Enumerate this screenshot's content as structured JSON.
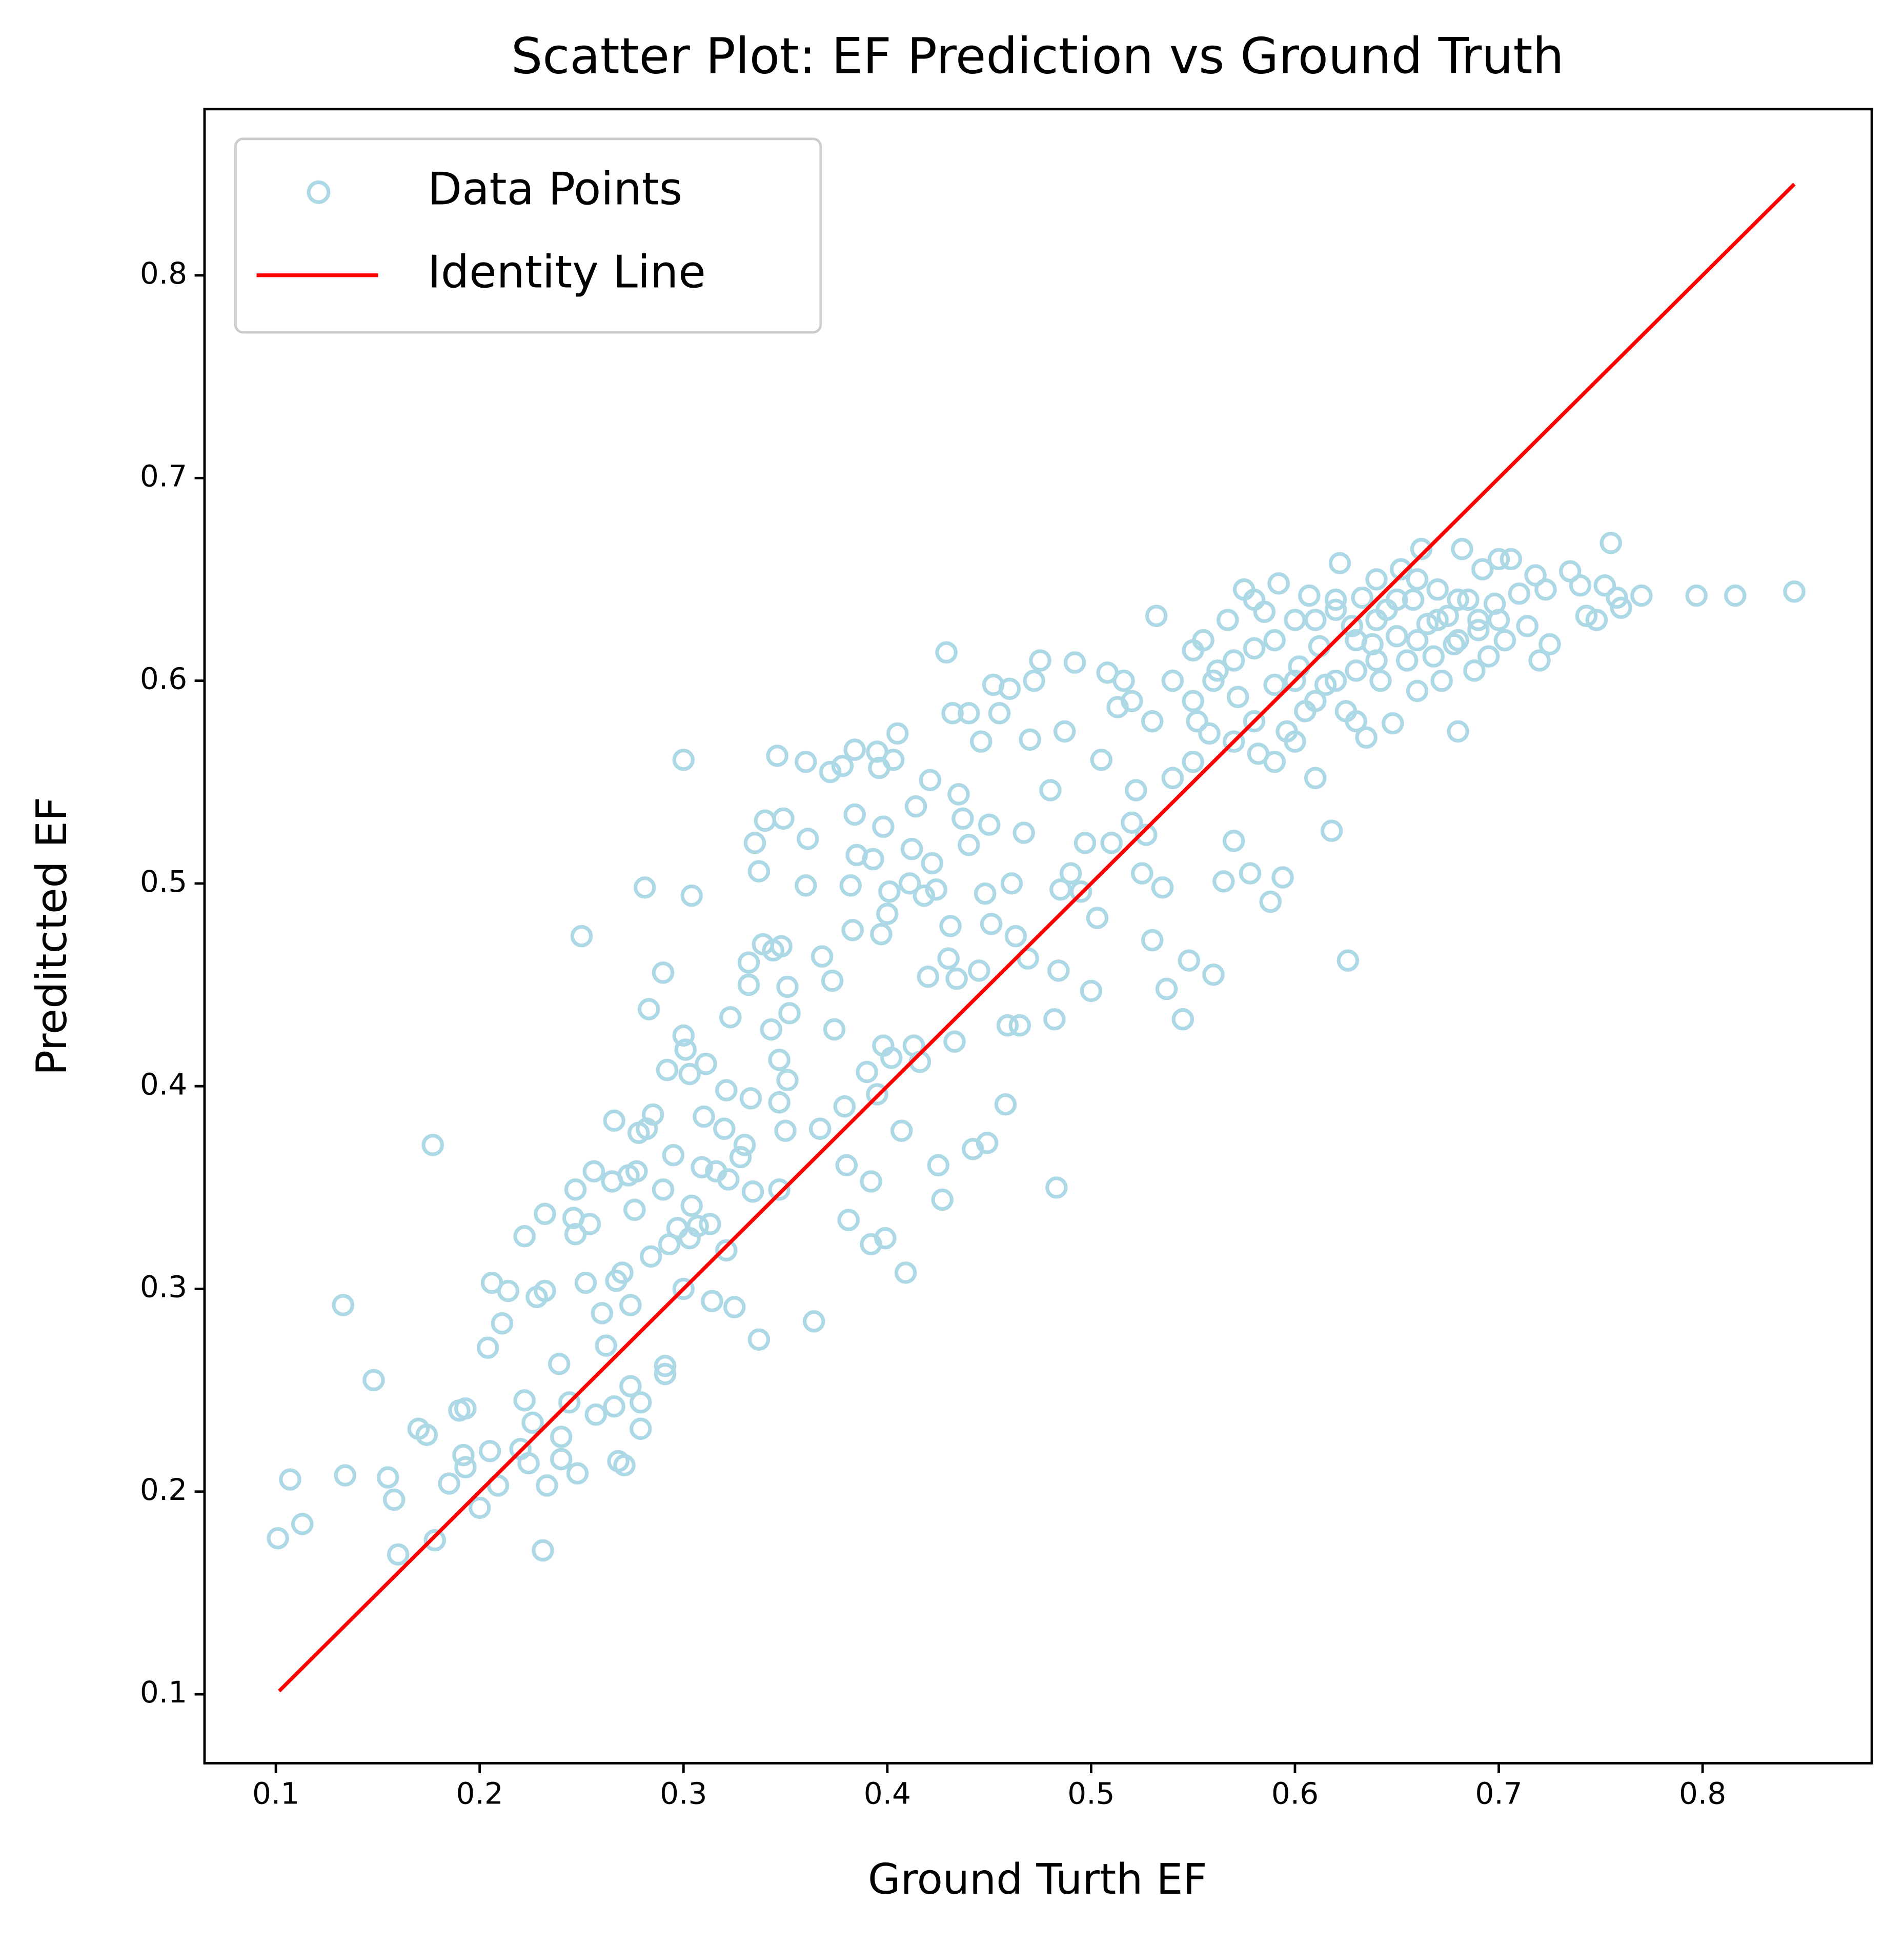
{
  "chart_data": {
    "type": "scatter",
    "title": "Scatter Plot: EF Prediction vs Ground Truth",
    "x_label": "Ground Turth EF",
    "y_label": "Preditcted EF",
    "xlim": [
      0.065,
      0.883
    ],
    "ylim": [
      0.066,
      0.882
    ],
    "xticks": [
      0.1,
      0.2,
      0.3,
      0.4,
      0.5,
      0.6,
      0.7,
      0.8
    ],
    "yticks": [
      0.1,
      0.2,
      0.3,
      0.4,
      0.5,
      0.6,
      0.7,
      0.8
    ],
    "legend": "upper left",
    "series": [
      {
        "name": "Data Points",
        "color": "#add8e6",
        "type": "scatter",
        "x": [
          0.101,
          0.107,
          0.113,
          0.133,
          0.134,
          0.148,
          0.155,
          0.158,
          0.16,
          0.17,
          0.174,
          0.177,
          0.178,
          0.185,
          0.19,
          0.192,
          0.193,
          0.193,
          0.2,
          0.204,
          0.205,
          0.206,
          0.209,
          0.211,
          0.214,
          0.22,
          0.222,
          0.222,
          0.224,
          0.226,
          0.228,
          0.231,
          0.232,
          0.232,
          0.233,
          0.239,
          0.24,
          0.24,
          0.244,
          0.246,
          0.247,
          0.247,
          0.248,
          0.25,
          0.252,
          0.254,
          0.256,
          0.257,
          0.26,
          0.262,
          0.265,
          0.266,
          0.266,
          0.267,
          0.268,
          0.27,
          0.271,
          0.273,
          0.274,
          0.274,
          0.276,
          0.277,
          0.278,
          0.279,
          0.279,
          0.281,
          0.282,
          0.283,
          0.284,
          0.285,
          0.29,
          0.29,
          0.291,
          0.291,
          0.292,
          0.293,
          0.295,
          0.297,
          0.3,
          0.3,
          0.3,
          0.301,
          0.303,
          0.303,
          0.304,
          0.304,
          0.307,
          0.309,
          0.31,
          0.311,
          0.313,
          0.314,
          0.316,
          0.32,
          0.321,
          0.321,
          0.322,
          0.323,
          0.325,
          0.328,
          0.33,
          0.332,
          0.332,
          0.333,
          0.334,
          0.335,
          0.337,
          0.337,
          0.339,
          0.34,
          0.343,
          0.344,
          0.346,
          0.347,
          0.347,
          0.347,
          0.348,
          0.349,
          0.35,
          0.351,
          0.351,
          0.352,
          0.36,
          0.36,
          0.361,
          0.364,
          0.367,
          0.368,
          0.372,
          0.373,
          0.374,
          0.378,
          0.379,
          0.38,
          0.381,
          0.382,
          0.383,
          0.384,
          0.384,
          0.385,
          0.39,
          0.392,
          0.392,
          0.393,
          0.395,
          0.395,
          0.396,
          0.397,
          0.398,
          0.398,
          0.399,
          0.4,
          0.401,
          0.402,
          0.403,
          0.405,
          0.407,
          0.409,
          0.411,
          0.412,
          0.413,
          0.414,
          0.416,
          0.418,
          0.42,
          0.421,
          0.422,
          0.424,
          0.425,
          0.427,
          0.429,
          0.43,
          0.431,
          0.432,
          0.433,
          0.434,
          0.435,
          0.437,
          0.44,
          0.44,
          0.442,
          0.445,
          0.446,
          0.448,
          0.449,
          0.45,
          0.451,
          0.452,
          0.455,
          0.458,
          0.459,
          0.46,
          0.461,
          0.463,
          0.465,
          0.467,
          0.469,
          0.47,
          0.472,
          0.475,
          0.48,
          0.482,
          0.483,
          0.484,
          0.485,
          0.487,
          0.49,
          0.492,
          0.495,
          0.497,
          0.5,
          0.503,
          0.505,
          0.508,
          0.51,
          0.513,
          0.516,
          0.52,
          0.522,
          0.525,
          0.527,
          0.53,
          0.532,
          0.535,
          0.537,
          0.54,
          0.545,
          0.548,
          0.55,
          0.552,
          0.555,
          0.558,
          0.56,
          0.562,
          0.565,
          0.567,
          0.57,
          0.572,
          0.575,
          0.578,
          0.58,
          0.582,
          0.585,
          0.588,
          0.59,
          0.592,
          0.594,
          0.596,
          0.6,
          0.602,
          0.605,
          0.607,
          0.61,
          0.612,
          0.615,
          0.618,
          0.62,
          0.622,
          0.625,
          0.626,
          0.628,
          0.63,
          0.633,
          0.635,
          0.638,
          0.64,
          0.642,
          0.645,
          0.648,
          0.65,
          0.652,
          0.655,
          0.658,
          0.66,
          0.662,
          0.665,
          0.668,
          0.67,
          0.672,
          0.675,
          0.678,
          0.68,
          0.682,
          0.685,
          0.688,
          0.69,
          0.692,
          0.695,
          0.698,
          0.7,
          0.703,
          0.706,
          0.71,
          0.714,
          0.718,
          0.72,
          0.723,
          0.725,
          0.735,
          0.74,
          0.743,
          0.748,
          0.752,
          0.755,
          0.758,
          0.76,
          0.77,
          0.797,
          0.816,
          0.845,
          0.55,
          0.56,
          0.57,
          0.58,
          0.59,
          0.6,
          0.61,
          0.62,
          0.63,
          0.64,
          0.65,
          0.66,
          0.67,
          0.68,
          0.69,
          0.54,
          0.53,
          0.52,
          0.57,
          0.6,
          0.62,
          0.64,
          0.66,
          0.68,
          0.7,
          0.58,
          0.59,
          0.61,
          0.63,
          0.55
        ],
        "values": [
          0.177,
          0.206,
          0.184,
          0.292,
          0.208,
          0.255,
          0.207,
          0.196,
          0.169,
          0.231,
          0.228,
          0.371,
          0.176,
          0.204,
          0.24,
          0.218,
          0.241,
          0.212,
          0.192,
          0.271,
          0.22,
          0.303,
          0.203,
          0.283,
          0.299,
          0.221,
          0.245,
          0.326,
          0.214,
          0.234,
          0.296,
          0.171,
          0.299,
          0.337,
          0.203,
          0.263,
          0.227,
          0.216,
          0.244,
          0.335,
          0.349,
          0.327,
          0.209,
          0.474,
          0.303,
          0.332,
          0.358,
          0.238,
          0.288,
          0.272,
          0.353,
          0.383,
          0.242,
          0.304,
          0.215,
          0.308,
          0.213,
          0.356,
          0.292,
          0.252,
          0.339,
          0.358,
          0.377,
          0.244,
          0.231,
          0.498,
          0.379,
          0.438,
          0.316,
          0.386,
          0.456,
          0.349,
          0.262,
          0.258,
          0.408,
          0.322,
          0.366,
          0.33,
          0.561,
          0.425,
          0.3,
          0.418,
          0.325,
          0.406,
          0.494,
          0.341,
          0.331,
          0.36,
          0.385,
          0.411,
          0.332,
          0.294,
          0.358,
          0.379,
          0.319,
          0.398,
          0.354,
          0.434,
          0.291,
          0.365,
          0.371,
          0.45,
          0.461,
          0.394,
          0.348,
          0.52,
          0.275,
          0.506,
          0.47,
          0.531,
          0.428,
          0.467,
          0.563,
          0.349,
          0.392,
          0.413,
          0.469,
          0.532,
          0.378,
          0.449,
          0.403,
          0.436,
          0.56,
          0.499,
          0.522,
          0.284,
          0.379,
          0.464,
          0.555,
          0.452,
          0.428,
          0.558,
          0.39,
          0.361,
          0.334,
          0.499,
          0.477,
          0.566,
          0.534,
          0.514,
          0.407,
          0.353,
          0.322,
          0.512,
          0.565,
          0.396,
          0.557,
          0.475,
          0.528,
          0.42,
          0.325,
          0.485,
          0.496,
          0.414,
          0.561,
          0.574,
          0.378,
          0.308,
          0.5,
          0.517,
          0.42,
          0.538,
          0.412,
          0.494,
          0.454,
          0.551,
          0.51,
          0.497,
          0.361,
          0.344,
          0.614,
          0.463,
          0.479,
          0.584,
          0.422,
          0.453,
          0.544,
          0.532,
          0.584,
          0.519,
          0.369,
          0.457,
          0.57,
          0.495,
          0.372,
          0.529,
          0.48,
          0.598,
          0.584,
          0.391,
          0.43,
          0.596,
          0.5,
          0.474,
          0.43,
          0.525,
          0.463,
          0.571,
          0.6,
          0.61,
          0.546,
          0.433,
          0.35,
          0.457,
          0.497,
          0.575,
          0.505,
          0.609,
          0.496,
          0.52,
          0.447,
          0.483,
          0.561,
          0.604,
          0.52,
          0.587,
          0.6,
          0.53,
          0.546,
          0.505,
          0.524,
          0.472,
          0.632,
          0.498,
          0.448,
          0.552,
          0.433,
          0.462,
          0.615,
          0.58,
          0.62,
          0.574,
          0.455,
          0.605,
          0.501,
          0.63,
          0.521,
          0.592,
          0.645,
          0.505,
          0.616,
          0.564,
          0.634,
          0.491,
          0.598,
          0.648,
          0.503,
          0.575,
          0.63,
          0.607,
          0.585,
          0.642,
          0.552,
          0.617,
          0.598,
          0.526,
          0.635,
          0.658,
          0.585,
          0.462,
          0.627,
          0.605,
          0.641,
          0.572,
          0.618,
          0.65,
          0.6,
          0.635,
          0.579,
          0.622,
          0.655,
          0.61,
          0.64,
          0.595,
          0.665,
          0.628,
          0.612,
          0.645,
          0.6,
          0.632,
          0.618,
          0.575,
          0.665,
          0.64,
          0.605,
          0.625,
          0.655,
          0.612,
          0.638,
          0.66,
          0.62,
          0.66,
          0.643,
          0.627,
          0.652,
          0.61,
          0.645,
          0.618,
          0.654,
          0.647,
          0.632,
          0.63,
          0.647,
          0.668,
          0.641,
          0.636,
          0.642,
          0.642,
          0.642,
          0.644,
          0.59,
          0.6,
          0.61,
          0.58,
          0.62,
          0.6,
          0.63,
          0.6,
          0.62,
          0.61,
          0.64,
          0.62,
          0.63,
          0.64,
          0.63,
          0.6,
          0.58,
          0.59,
          0.57,
          0.57,
          0.64,
          0.63,
          0.65,
          0.62,
          0.63,
          0.64,
          0.56,
          0.59,
          0.58,
          0.56
        ]
      },
      {
        "name": "Identity Line",
        "color": "#ff0000",
        "type": "line",
        "x": [
          0.1016,
          0.845
        ],
        "values": [
          0.1016,
          0.845
        ]
      }
    ]
  }
}
